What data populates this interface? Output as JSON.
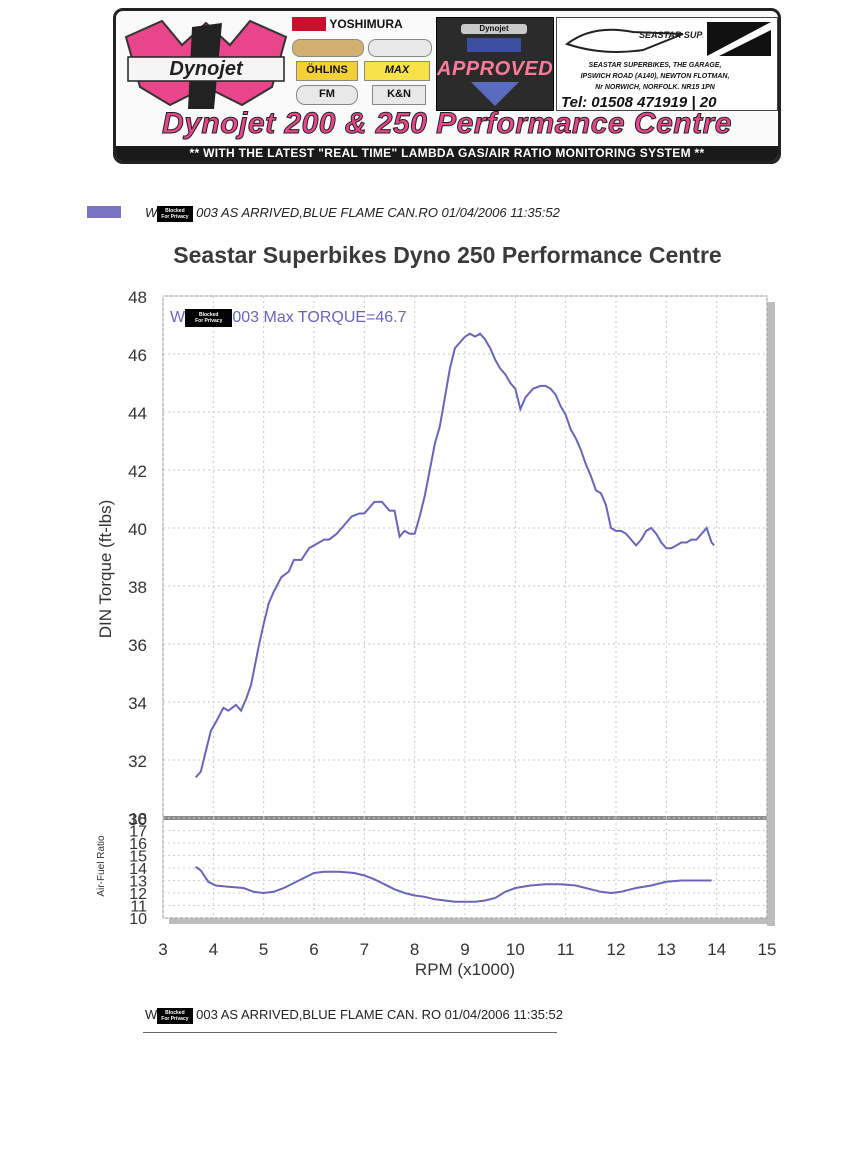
{
  "banner": {
    "brand": "Dynojet",
    "sponsors": [
      "YOSHIMURA",
      "ÖHLINS",
      "MAX",
      "K&N",
      "FM"
    ],
    "approved": "APPROVED",
    "approved_top": "Dynojet",
    "seastar_name": "SEASTAR SUPERBIKES",
    "seastar_address_lines": [
      "SEASTAR SUPERBIKES, THE GARAGE,",
      "IPSWICH ROAD (A140), NEWTON FLOTMAN,",
      "Nr NORWICH, NORFOLK. NR15 1PN"
    ],
    "tel": "Tel: 01508 471919 | 20",
    "title": "Dynojet 200 & 250 Performance Centre",
    "strip": "** WITH THE LATEST \"REAL TIME\" LAMBDA GAS/AIR RATIO MONITORING SYSTEM **",
    "accent_color": "#e8458a"
  },
  "privacy_box": {
    "line1": "Blocked",
    "line2": "For Privacy"
  },
  "legend": {
    "prefix": "W",
    "suffix": "003   AS ARRIVED,BLUE FLAME CAN.RO  01/04/2006 11:35:52",
    "color": "#7b74c4"
  },
  "footer": {
    "prefix": "W",
    "suffix": "003   AS ARRIVED,BLUE FLAME CAN.     RO   01/04/2006 11:35:52"
  },
  "chart_data": [
    {
      "type": "line",
      "title": "Seastar Superbikes Dyno 250 Performance Centre",
      "xlabel": "RPM (x1000)",
      "ylabel": "DIN Torque (ft-lbs)",
      "xlim": [
        3,
        15
      ],
      "ylim": [
        30,
        48
      ],
      "xticks": [
        3,
        4,
        5,
        6,
        7,
        8,
        9,
        10,
        11,
        12,
        13,
        14,
        15
      ],
      "yticks": [
        30,
        32,
        34,
        36,
        38,
        40,
        42,
        44,
        46,
        48
      ],
      "grid": true,
      "annotation": {
        "prefix": "W",
        "suffix": "003  Max TORQUE=46.7"
      },
      "series": [
        {
          "color": "#6b64b8",
          "x": [
            3.65,
            3.75,
            3.85,
            3.95,
            4.05,
            4.2,
            4.3,
            4.45,
            4.55,
            4.65,
            4.75,
            4.9,
            5.0,
            5.1,
            5.2,
            5.35,
            5.5,
            5.6,
            5.75,
            5.9,
            6.0,
            6.1,
            6.2,
            6.3,
            6.45,
            6.6,
            6.75,
            6.9,
            7.0,
            7.2,
            7.35,
            7.5,
            7.6,
            7.7,
            7.8,
            7.9,
            8.0,
            8.1,
            8.2,
            8.3,
            8.4,
            8.5,
            8.6,
            8.7,
            8.8,
            8.9,
            9.0,
            9.1,
            9.2,
            9.3,
            9.4,
            9.5,
            9.6,
            9.7,
            9.8,
            9.9,
            10.0,
            10.1,
            10.2,
            10.35,
            10.5,
            10.6,
            10.7,
            10.8,
            10.9,
            11.0,
            11.1,
            11.2,
            11.3,
            11.4,
            11.5,
            11.6,
            11.7,
            11.8,
            11.9,
            12.0,
            12.1,
            12.2,
            12.3,
            12.4,
            12.5,
            12.6,
            12.7,
            12.8,
            12.9,
            13.0,
            13.1,
            13.2,
            13.3,
            13.4,
            13.5,
            13.6,
            13.7,
            13.8,
            13.9,
            13.95
          ],
          "y": [
            31.4,
            31.6,
            32.3,
            33.0,
            33.3,
            33.8,
            33.7,
            33.9,
            33.7,
            34.1,
            34.6,
            35.9,
            36.7,
            37.4,
            37.8,
            38.3,
            38.5,
            38.9,
            38.9,
            39.3,
            39.4,
            39.5,
            39.6,
            39.6,
            39.8,
            40.1,
            40.4,
            40.5,
            40.5,
            40.9,
            40.9,
            40.6,
            40.6,
            39.7,
            39.9,
            39.8,
            39.8,
            40.4,
            41.1,
            42.0,
            42.9,
            43.5,
            44.5,
            45.5,
            46.2,
            46.4,
            46.6,
            46.7,
            46.6,
            46.7,
            46.5,
            46.2,
            45.8,
            45.5,
            45.3,
            45.0,
            44.8,
            44.1,
            44.5,
            44.8,
            44.9,
            44.9,
            44.8,
            44.6,
            44.2,
            43.9,
            43.4,
            43.1,
            42.7,
            42.2,
            41.8,
            41.3,
            41.2,
            40.8,
            40.0,
            39.9,
            39.9,
            39.8,
            39.6,
            39.4,
            39.6,
            39.9,
            40.0,
            39.8,
            39.5,
            39.3,
            39.3,
            39.4,
            39.5,
            39.5,
            39.6,
            39.6,
            39.8,
            40.0,
            39.5,
            39.4
          ]
        }
      ]
    },
    {
      "type": "line",
      "xlabel": "RPM (x1000)",
      "ylabel": "Air-Fuel Ratio",
      "xlim": [
        3,
        15
      ],
      "ylim": [
        10,
        18
      ],
      "xticks": [
        3,
        4,
        5,
        6,
        7,
        8,
        9,
        10,
        11,
        12,
        13,
        14,
        15
      ],
      "yticks": [
        10,
        11,
        12,
        13,
        14,
        15,
        16,
        17,
        18
      ],
      "grid": true,
      "series": [
        {
          "color": "#6b64b8",
          "x": [
            3.65,
            3.75,
            3.9,
            4.05,
            4.3,
            4.6,
            4.8,
            5.0,
            5.2,
            5.4,
            5.6,
            5.8,
            6.0,
            6.2,
            6.5,
            6.8,
            7.0,
            7.2,
            7.4,
            7.6,
            7.8,
            8.0,
            8.2,
            8.4,
            8.6,
            8.8,
            9.0,
            9.2,
            9.4,
            9.6,
            9.8,
            10.0,
            10.3,
            10.6,
            10.9,
            11.2,
            11.5,
            11.7,
            11.9,
            12.1,
            12.4,
            12.7,
            13.0,
            13.3,
            13.6,
            13.9
          ],
          "y": [
            14.1,
            13.8,
            12.9,
            12.6,
            12.5,
            12.4,
            12.1,
            12.0,
            12.1,
            12.4,
            12.8,
            13.2,
            13.6,
            13.7,
            13.7,
            13.6,
            13.4,
            13.1,
            12.7,
            12.3,
            12.0,
            11.8,
            11.7,
            11.5,
            11.4,
            11.3,
            11.3,
            11.3,
            11.4,
            11.6,
            12.1,
            12.4,
            12.6,
            12.7,
            12.7,
            12.6,
            12.3,
            12.1,
            12.0,
            12.1,
            12.4,
            12.6,
            12.9,
            13.0,
            13.0,
            13.0
          ]
        }
      ]
    }
  ]
}
